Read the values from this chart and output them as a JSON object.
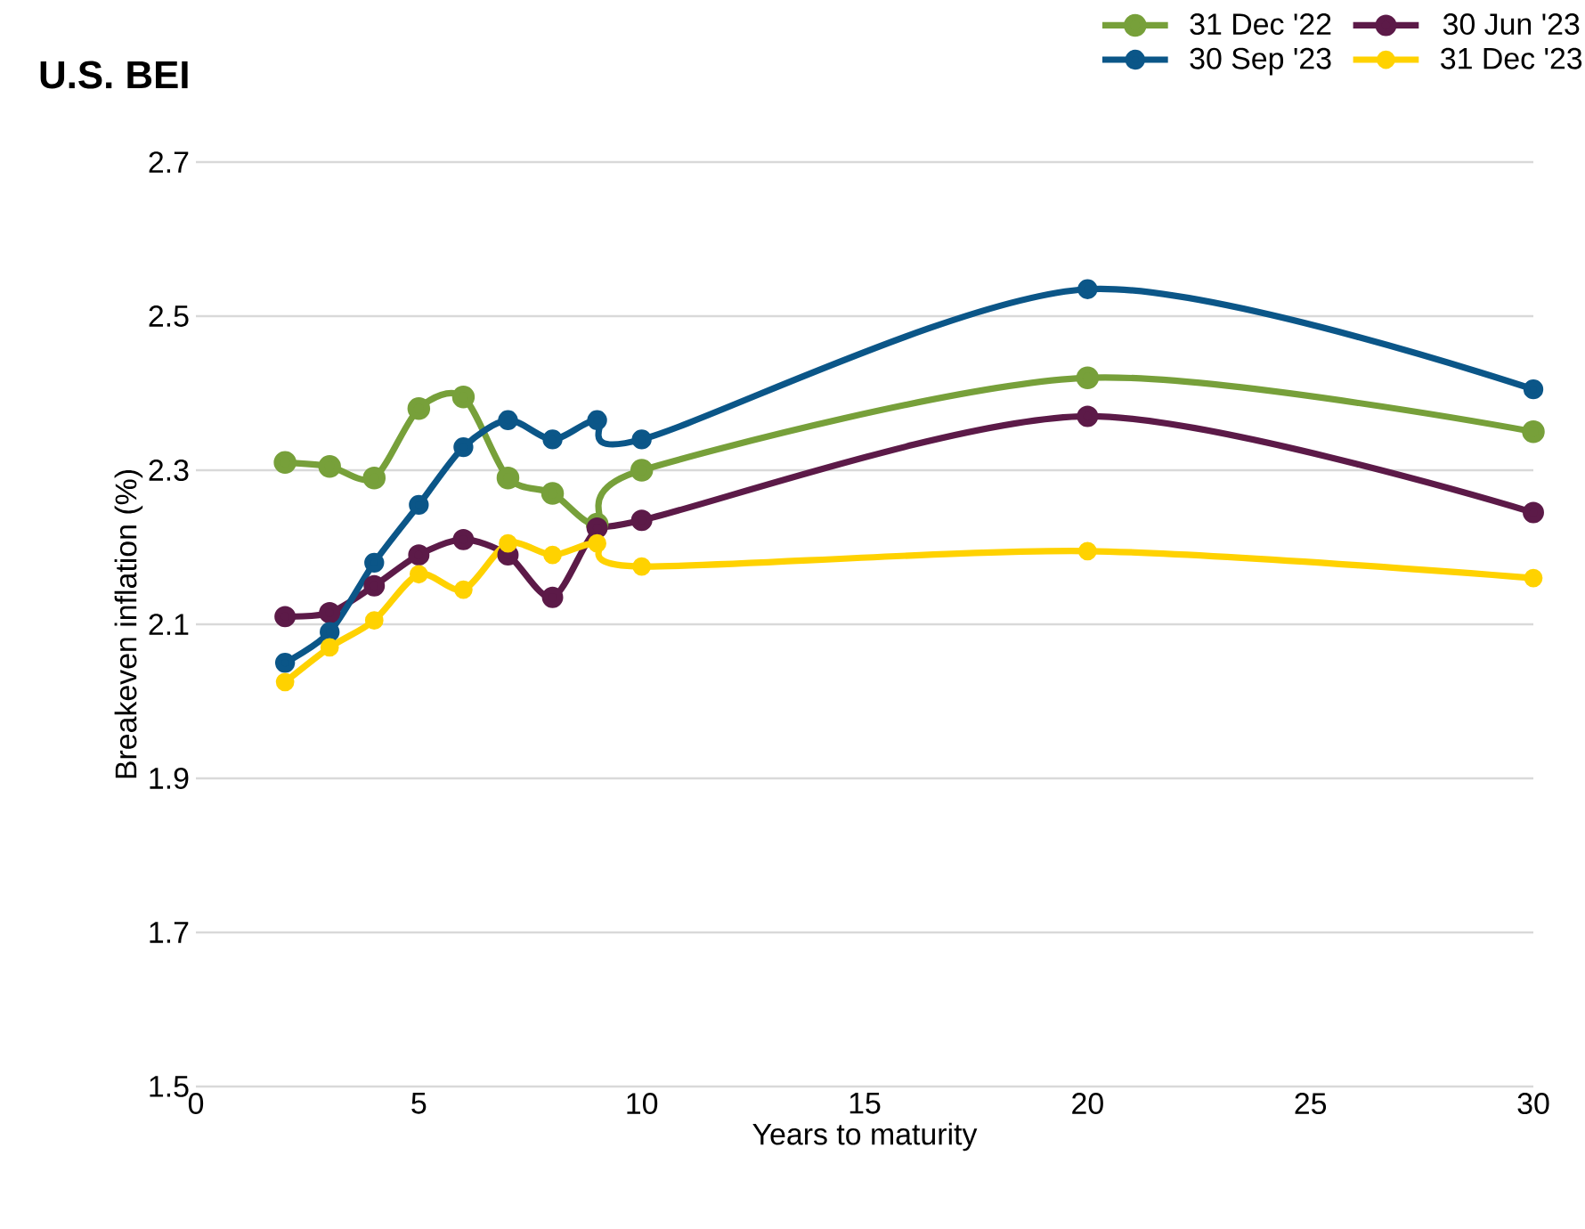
{
  "chart_data": {
    "type": "line",
    "title": "U.S. BEI",
    "xlabel": "Years to maturity",
    "ylabel": "Breakeven inflation  (%)",
    "x": [
      2,
      3,
      4,
      5,
      6,
      7,
      8,
      9,
      10,
      20,
      30
    ],
    "series": [
      {
        "name": "31 Dec '22",
        "color": "#77a03a",
        "values": [
          2.31,
          2.305,
          2.29,
          2.38,
          2.395,
          2.29,
          2.27,
          2.23,
          2.3,
          2.42,
          2.35
        ]
      },
      {
        "name": "30 Jun '23",
        "color": "#5c1a48",
        "values": [
          2.11,
          2.115,
          2.15,
          2.19,
          2.21,
          2.19,
          2.135,
          2.225,
          2.235,
          2.37,
          2.245
        ]
      },
      {
        "name": "30 Sep '23",
        "color": "#0b5688",
        "values": [
          2.05,
          2.09,
          2.18,
          2.255,
          2.33,
          2.365,
          2.34,
          2.365,
          2.34,
          2.535,
          2.405
        ]
      },
      {
        "name": "31 Dec '23",
        "color": "#ffd200",
        "values": [
          2.025,
          2.07,
          2.105,
          2.165,
          2.145,
          2.205,
          2.19,
          2.205,
          2.175,
          2.195,
          2.16
        ]
      }
    ],
    "xlim": [
      0,
      30
    ],
    "xticks": [
      0,
      5,
      10,
      15,
      20,
      25,
      30
    ],
    "ylim": [
      1.5,
      2.7
    ],
    "yticks": [
      1.5,
      1.7,
      1.9,
      2.1,
      2.3,
      2.5,
      2.7
    ],
    "grid": "y",
    "legend": "top right",
    "marker": "circle",
    "line_style": "solid"
  }
}
